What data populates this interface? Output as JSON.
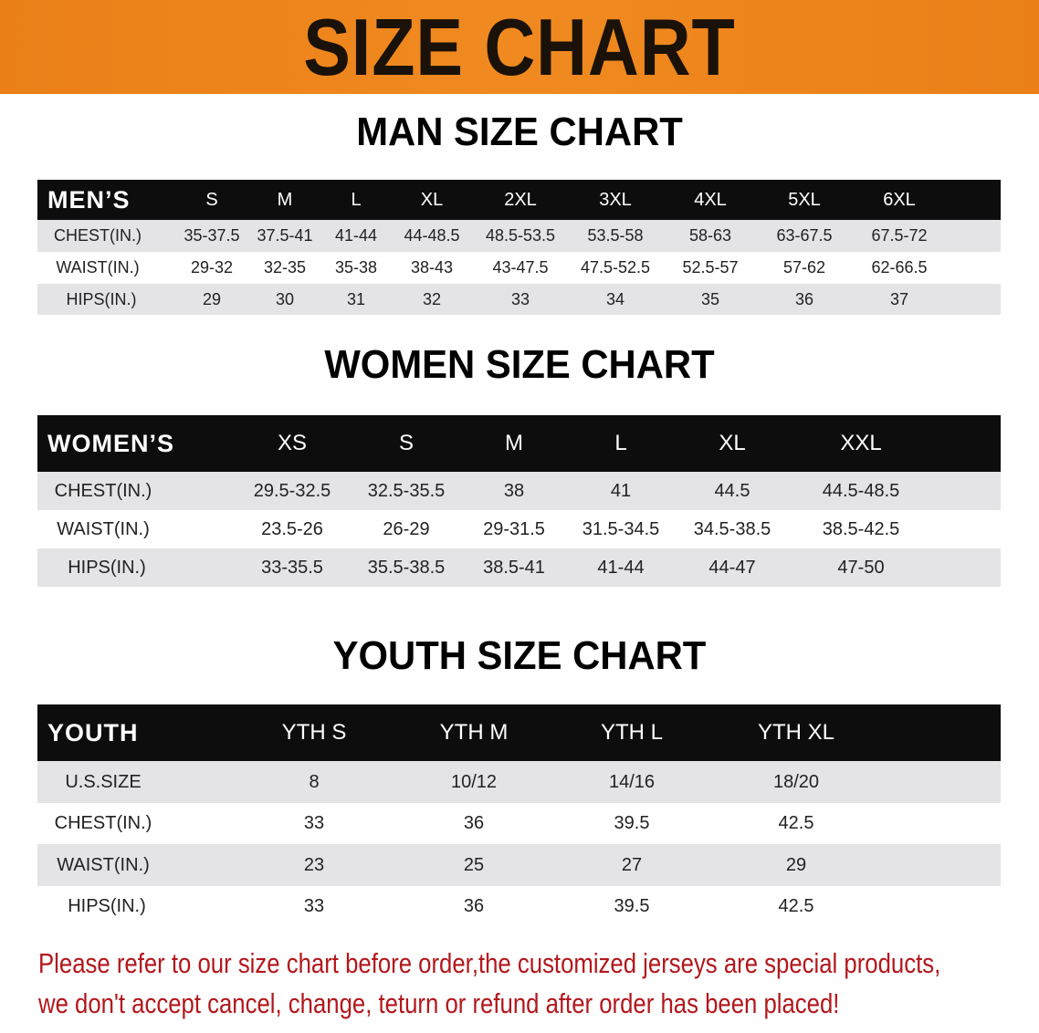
{
  "banner": {
    "title": "SIZE CHART",
    "color": "#ea7f18"
  },
  "men": {
    "title": "MAN SIZE CHART",
    "header": [
      "MEN’S",
      "S",
      "M",
      "L",
      "XL",
      "2XL",
      "3XL",
      "4XL",
      "5XL",
      "6XL"
    ],
    "rows": [
      [
        "CHEST(IN.)",
        "35-37.5",
        "37.5-41",
        "41-44",
        "44-48.5",
        "48.5-53.5",
        "53.5-58",
        "58-63",
        "63-67.5",
        "67.5-72"
      ],
      [
        "WAIST(IN.)",
        "29-32",
        "32-35",
        "35-38",
        "38-43",
        "43-47.5",
        "47.5-52.5",
        "52.5-57",
        "57-62",
        "62-66.5"
      ],
      [
        "HIPS(IN.)",
        "29",
        "30",
        "31",
        "32",
        "33",
        "34",
        "35",
        "36",
        "37"
      ]
    ]
  },
  "women": {
    "title": "WOMEN SIZE CHART",
    "header": [
      "WOMEN’S",
      "XS",
      "S",
      "M",
      "L",
      "XL",
      "XXL"
    ],
    "rows": [
      [
        "CHEST(IN.)",
        "29.5-32.5",
        "32.5-35.5",
        "38",
        "41",
        "44.5",
        "44.5-48.5"
      ],
      [
        "WAIST(IN.)",
        "23.5-26",
        "26-29",
        "29-31.5",
        "31.5-34.5",
        "34.5-38.5",
        "38.5-42.5"
      ],
      [
        "HIPS(IN.)",
        "33-35.5",
        "35.5-38.5",
        "38.5-41",
        "41-44",
        "44-47",
        "47-50"
      ]
    ]
  },
  "youth": {
    "title": "YOUTH SIZE CHART",
    "header": [
      "YOUTH",
      "YTH S",
      "YTH M",
      "YTH L",
      "YTH XL"
    ],
    "rows": [
      [
        "U.S.SIZE",
        "8",
        "10/12",
        "14/16",
        "18/20"
      ],
      [
        "CHEST(IN.)",
        "33",
        "36",
        "39.5",
        "42.5"
      ],
      [
        "WAIST(IN.)",
        "23",
        "25",
        "27",
        "29"
      ],
      [
        "HIPS(IN.)",
        "33",
        "36",
        "39.5",
        "42.5"
      ]
    ]
  },
  "note": {
    "line1": "Please refer to our size chart before order,the customized jerseys are special products,",
    "line2": "we don't accept cancel, change, teturn or refund after order has been placed!",
    "color": "#b3171c"
  }
}
